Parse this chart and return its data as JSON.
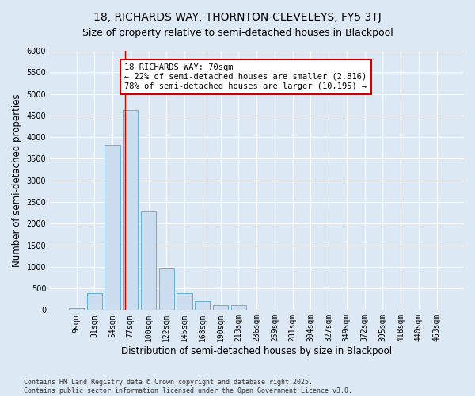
{
  "title_line1": "18, RICHARDS WAY, THORNTON-CLEVELEYS, FY5 3TJ",
  "title_line2": "Size of property relative to semi-detached houses in Blackpool",
  "xlabel": "Distribution of semi-detached houses by size in Blackpool",
  "ylabel": "Number of semi-detached properties",
  "footnote": "Contains HM Land Registry data © Crown copyright and database right 2025.\nContains public sector information licensed under the Open Government Licence v3.0.",
  "categories": [
    "9sqm",
    "31sqm",
    "54sqm",
    "77sqm",
    "100sqm",
    "122sqm",
    "145sqm",
    "168sqm",
    "190sqm",
    "213sqm",
    "236sqm",
    "259sqm",
    "281sqm",
    "304sqm",
    "327sqm",
    "349sqm",
    "372sqm",
    "395sqm",
    "418sqm",
    "440sqm",
    "463sqm"
  ],
  "values": [
    50,
    390,
    3820,
    4620,
    2270,
    960,
    390,
    210,
    110,
    110,
    0,
    0,
    0,
    0,
    0,
    0,
    0,
    0,
    0,
    0,
    0
  ],
  "bar_color": "#ccddf0",
  "bar_edge_color": "#6baed6",
  "vline_color": "#cc0000",
  "vline_x": 2.72,
  "annotation_text": "18 RICHARDS WAY: 70sqm\n← 22% of semi-detached houses are smaller (2,816)\n78% of semi-detached houses are larger (10,195) →",
  "annotation_box_color": "#ffffff",
  "annotation_box_edge_color": "#cc0000",
  "ylim": [
    0,
    6000
  ],
  "yticks": [
    0,
    500,
    1000,
    1500,
    2000,
    2500,
    3000,
    3500,
    4000,
    4500,
    5000,
    5500,
    6000
  ],
  "background_color": "#dde8f5",
  "grid_color": "#ffffff",
  "title_fontsize": 10,
  "subtitle_fontsize": 9,
  "axis_label_fontsize": 8.5,
  "tick_fontsize": 7,
  "annotation_fontsize": 7.5,
  "footnote_fontsize": 6
}
